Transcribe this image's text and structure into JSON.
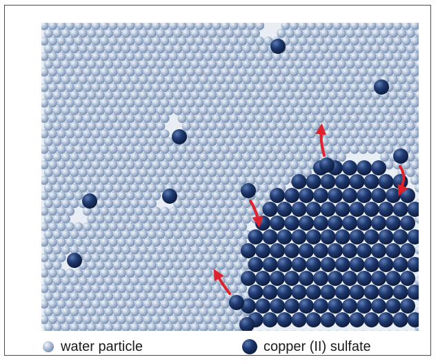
{
  "legend": {
    "water_label": "water particle",
    "copper_label": "copper (II) sulfate"
  },
  "colors": {
    "water_particle": "#aebfd6",
    "copper_particle": "#1d3566",
    "arrow": "#e0202a",
    "frame": "#4a4a4a"
  }
}
